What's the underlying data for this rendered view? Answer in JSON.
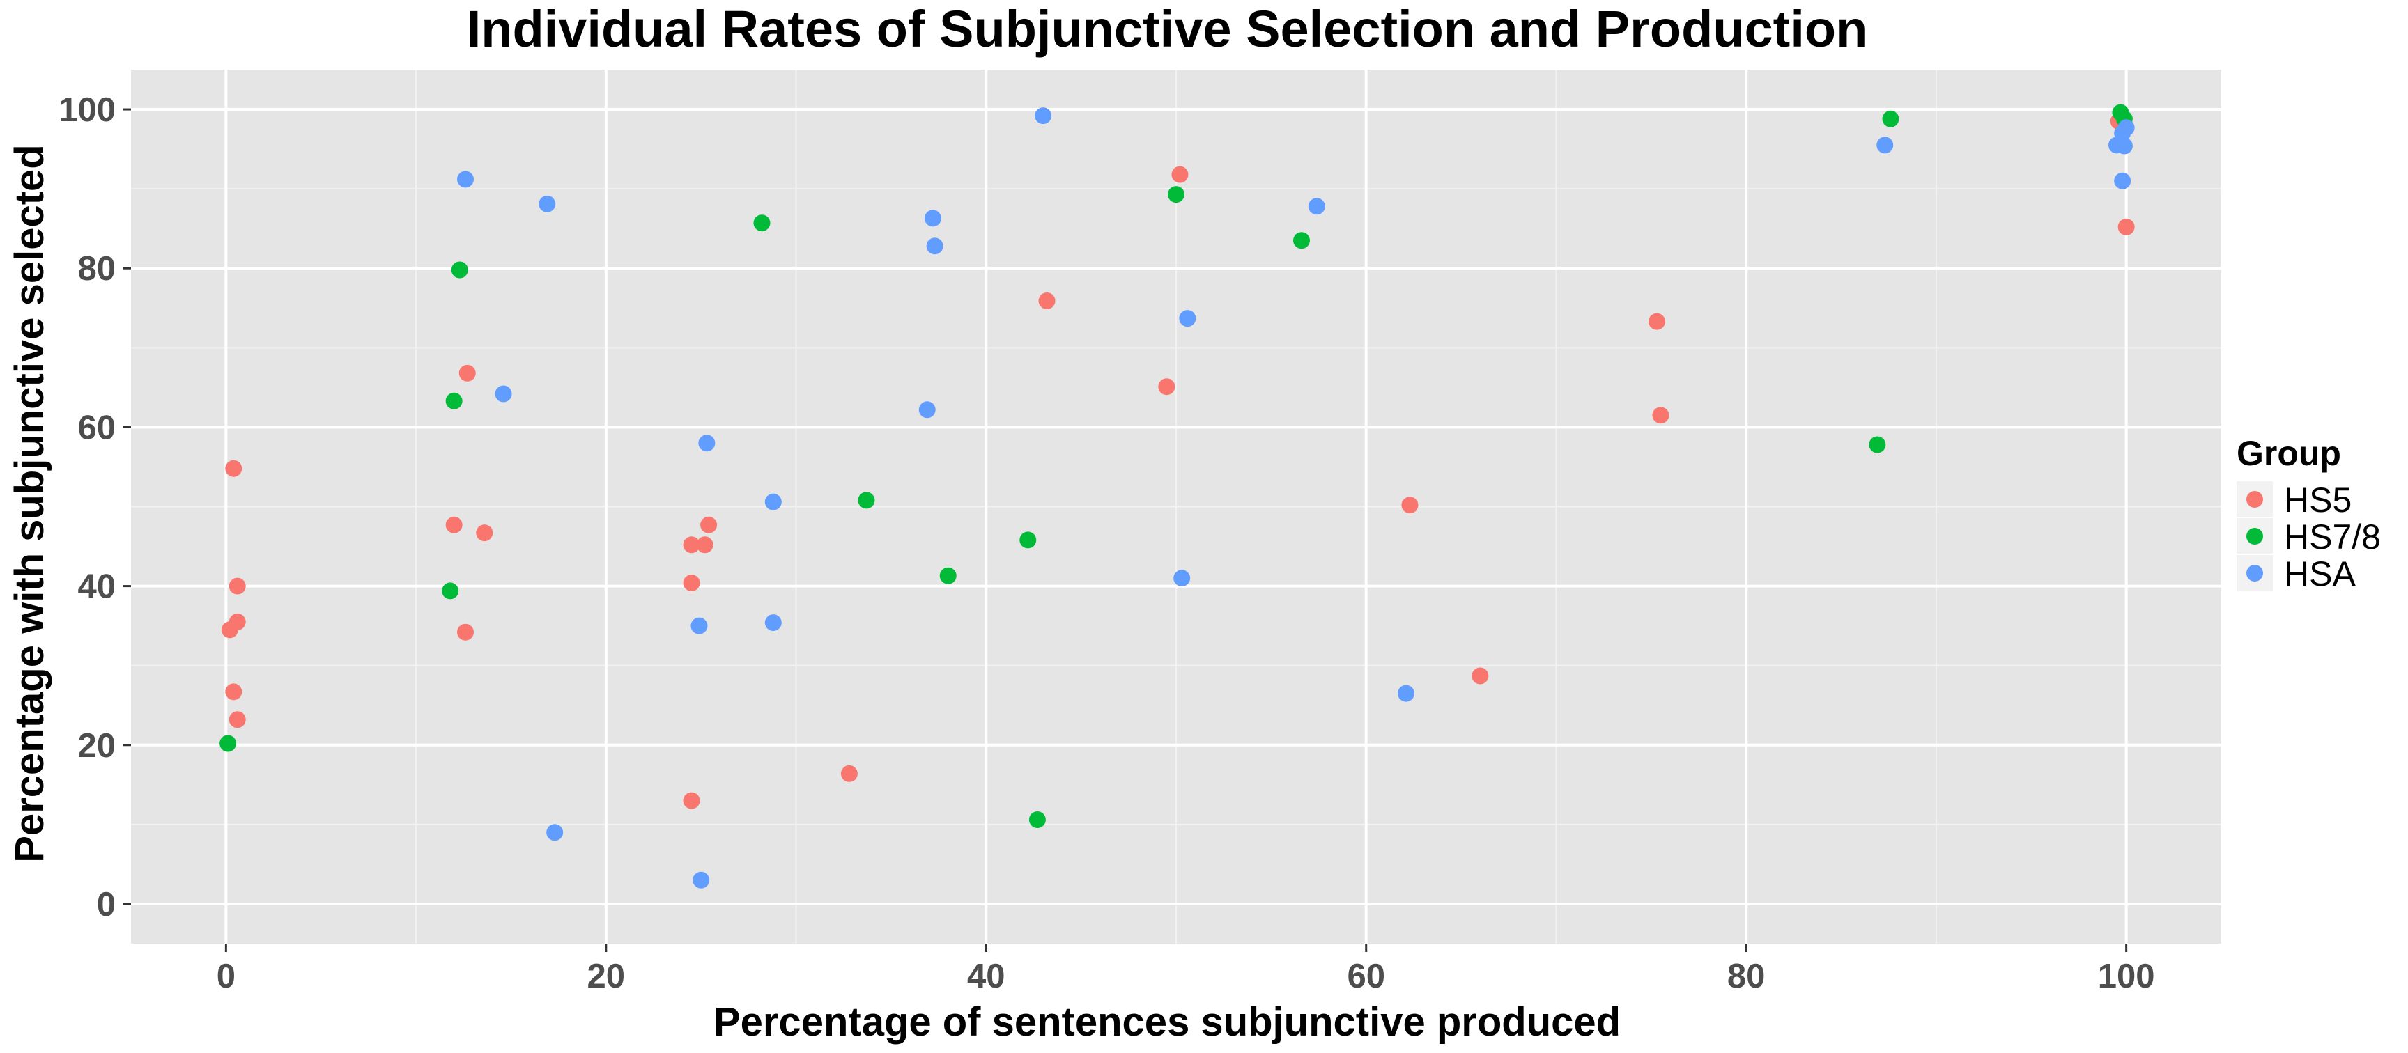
{
  "chart_data": {
    "type": "scatter",
    "title": "Individual Rates of Subjunctive Selection and Production",
    "xlabel": "Percentage of sentences subjunctive produced",
    "ylabel": "Percentage with subjunctive selected",
    "xlim": [
      -5,
      105
    ],
    "ylim": [
      -5,
      105
    ],
    "x_ticks": [
      0,
      20,
      40,
      60,
      80,
      100
    ],
    "y_ticks": [
      0,
      20,
      40,
      60,
      80,
      100
    ],
    "x_tick_labels": [
      "0",
      "20",
      "40",
      "60",
      "80",
      "100"
    ],
    "y_tick_labels": [
      "0",
      "20",
      "40",
      "60",
      "80",
      "100"
    ],
    "grid": true,
    "legend": {
      "title": "Group",
      "position": "right"
    },
    "series": [
      {
        "name": "HS5",
        "color": "#F8766D",
        "points": [
          [
            0.4,
            54.8
          ],
          [
            0.6,
            40.0
          ],
          [
            0.6,
            35.5
          ],
          [
            0.2,
            34.5
          ],
          [
            0.4,
            26.7
          ],
          [
            0.6,
            23.2
          ],
          [
            12.7,
            66.8
          ],
          [
            12.0,
            47.7
          ],
          [
            13.6,
            46.7
          ],
          [
            12.6,
            34.2
          ],
          [
            24.5,
            45.2
          ],
          [
            25.2,
            45.2
          ],
          [
            25.4,
            47.7
          ],
          [
            24.5,
            40.4
          ],
          [
            24.5,
            13.0
          ],
          [
            32.8,
            16.4
          ],
          [
            43.2,
            75.9
          ],
          [
            50.2,
            91.8
          ],
          [
            49.5,
            65.1
          ],
          [
            62.3,
            50.2
          ],
          [
            66.0,
            28.7
          ],
          [
            75.3,
            73.3
          ],
          [
            75.5,
            61.5
          ],
          [
            99.6,
            98.5
          ],
          [
            100.0,
            85.2
          ]
        ]
      },
      {
        "name": "HS7/8",
        "color": "#00BA38",
        "points": [
          [
            0.1,
            20.2
          ],
          [
            12.3,
            79.8
          ],
          [
            12.0,
            63.3
          ],
          [
            11.8,
            39.4
          ],
          [
            28.2,
            85.7
          ],
          [
            33.7,
            50.8
          ],
          [
            38.0,
            41.3
          ],
          [
            42.2,
            45.8
          ],
          [
            42.7,
            10.6
          ],
          [
            50.0,
            89.3
          ],
          [
            56.6,
            83.5
          ],
          [
            86.9,
            57.8
          ],
          [
            87.6,
            98.8
          ],
          [
            99.7,
            99.6
          ],
          [
            99.9,
            98.8
          ]
        ]
      },
      {
        "name": "HSA",
        "color": "#619CFF",
        "points": [
          [
            12.6,
            91.2
          ],
          [
            16.9,
            88.1
          ],
          [
            14.6,
            64.2
          ],
          [
            17.3,
            9.0
          ],
          [
            25.3,
            58.0
          ],
          [
            24.9,
            35.0
          ],
          [
            25.0,
            3.0
          ],
          [
            28.8,
            50.6
          ],
          [
            28.8,
            35.4
          ],
          [
            37.2,
            86.3
          ],
          [
            37.3,
            82.8
          ],
          [
            36.9,
            62.2
          ],
          [
            43.0,
            99.2
          ],
          [
            50.6,
            73.7
          ],
          [
            50.3,
            41.0
          ],
          [
            57.4,
            87.8
          ],
          [
            62.1,
            26.5
          ],
          [
            87.3,
            95.5
          ],
          [
            99.5,
            95.5
          ],
          [
            99.9,
            95.4
          ],
          [
            99.8,
            97.0
          ],
          [
            100.0,
            97.7
          ],
          [
            99.8,
            91.0
          ]
        ]
      }
    ]
  }
}
